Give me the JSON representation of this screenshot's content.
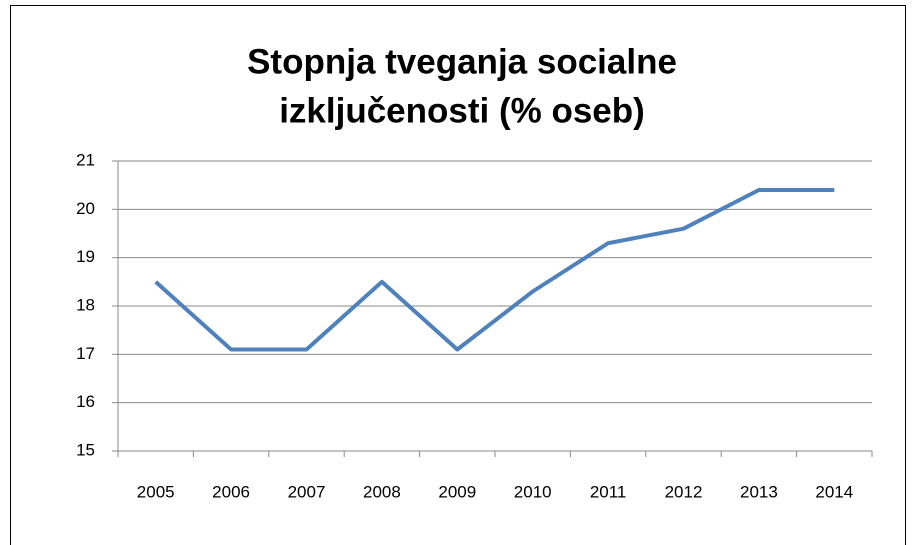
{
  "chart_data": {
    "type": "line",
    "title": [
      "Stopnja tveganja socialne",
      "izključenosti (% oseb)"
    ],
    "categories": [
      "2005",
      "2006",
      "2007",
      "2008",
      "2009",
      "2010",
      "2011",
      "2012",
      "2013",
      "2014"
    ],
    "values": [
      18.5,
      17.1,
      17.1,
      18.5,
      17.1,
      18.3,
      19.3,
      19.6,
      20.4,
      20.4
    ],
    "color": "#4f81bd",
    "ylim": [
      15,
      21
    ],
    "yticks": [
      15,
      16,
      17,
      18,
      19,
      20,
      21
    ],
    "grid": true
  }
}
